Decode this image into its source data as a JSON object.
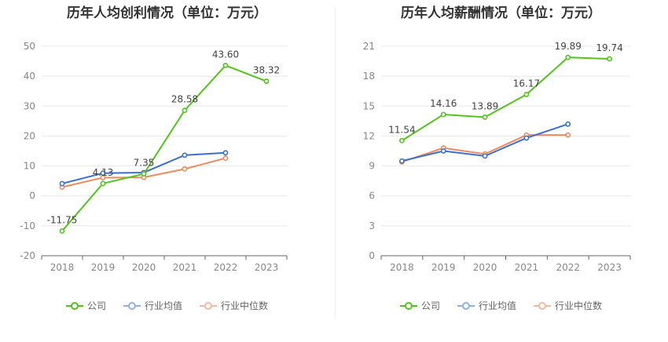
{
  "colors": {
    "company": "#52c41a",
    "avg": "#3a6fd1",
    "median": "#ee8a5f",
    "legend_avg": "#8fb0ec",
    "legend_median": "#f4b99e"
  },
  "legend": [
    "公司",
    "行业均值",
    "行业中位数"
  ],
  "chart_data": [
    {
      "type": "line",
      "title": "历年人均创利情况（单位：万元）",
      "categories": [
        "2018",
        "2019",
        "2020",
        "2021",
        "2022",
        "2023"
      ],
      "ylim": [
        -20,
        50
      ],
      "yticks": [
        "50",
        "40",
        "30",
        "20",
        "10",
        "0",
        "-10",
        "-20"
      ],
      "grid": true,
      "legend_position": "bottom",
      "series": [
        {
          "name": "公司",
          "values": [
            -11.75,
            4.13,
            7.35,
            28.58,
            43.6,
            38.32
          ],
          "labels": [
            "-11.75",
            "4.13",
            "7.35",
            "28.58",
            "43.60",
            "38.32"
          ]
        },
        {
          "name": "行业均值",
          "values": [
            4.1,
            7.6,
            7.8,
            13.6,
            14.4,
            null
          ]
        },
        {
          "name": "行业中位数",
          "values": [
            2.9,
            6.1,
            6.2,
            9.0,
            12.6,
            null
          ]
        }
      ]
    },
    {
      "type": "line",
      "title": "历年人均薪酬情况（单位：万元）",
      "categories": [
        "2018",
        "2019",
        "2020",
        "2021",
        "2022",
        "2023"
      ],
      "ylim": [
        0,
        21
      ],
      "yticks": [
        "21",
        "18",
        "15",
        "12",
        "9",
        "6",
        "3",
        "0"
      ],
      "grid": true,
      "legend_position": "bottom",
      "series": [
        {
          "name": "公司",
          "values": [
            11.54,
            14.16,
            13.89,
            16.17,
            19.89,
            19.74
          ],
          "labels": [
            "11.54",
            "14.16",
            "13.89",
            "16.17",
            "19.89",
            "19.74"
          ]
        },
        {
          "name": "行业均值",
          "values": [
            9.5,
            10.5,
            10.0,
            11.8,
            13.2,
            null
          ]
        },
        {
          "name": "行业中位数",
          "values": [
            9.4,
            10.8,
            10.2,
            12.1,
            12.1,
            null
          ]
        }
      ]
    }
  ]
}
